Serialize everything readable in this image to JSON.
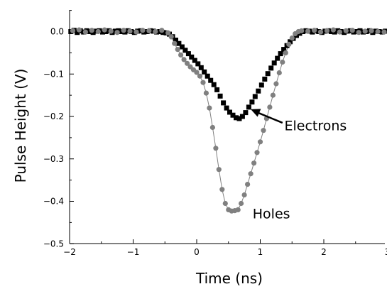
{
  "chart_data": {
    "type": "scatter",
    "xlabel": "Time (ns)",
    "ylabel": "Pulse Height (V)",
    "xlim": [
      -2,
      3
    ],
    "ylim": [
      -0.5,
      0.05
    ],
    "x_ticks": [
      -2,
      -1,
      0,
      1,
      2,
      3
    ],
    "x_tick_labels": [
      "−2",
      "−1",
      "0",
      "1",
      "2",
      "3"
    ],
    "y_ticks": [
      0.0,
      -0.1,
      -0.2,
      -0.3,
      -0.4,
      -0.5
    ],
    "y_tick_labels": [
      "0.0",
      "−0.1",
      "−0.2",
      "−0.3",
      "−0.4",
      "−0.5"
    ],
    "grid": false,
    "legend": "none",
    "series": [
      {
        "name": "Electrons",
        "marker": "square",
        "color": "#000000",
        "line": false,
        "points": [
          [
            -1.98,
            0.0
          ],
          [
            -1.93,
            0.003
          ],
          [
            -1.88,
            -0.002
          ],
          [
            -1.83,
            0.002
          ],
          [
            -1.78,
            -0.001
          ],
          [
            -1.73,
            0.002
          ],
          [
            -1.68,
            0.0
          ],
          [
            -1.63,
            -0.002
          ],
          [
            -1.58,
            0.001
          ],
          [
            -1.53,
            0.002
          ],
          [
            -1.48,
            -0.001
          ],
          [
            -1.43,
            0.0
          ],
          [
            -1.38,
            0.002
          ],
          [
            -1.33,
            -0.002
          ],
          [
            -1.28,
            0.001
          ],
          [
            -1.23,
            0.002
          ],
          [
            -1.18,
            0.0
          ],
          [
            -1.13,
            -0.001
          ],
          [
            -1.08,
            0.002
          ],
          [
            -1.03,
            0.0
          ],
          [
            -0.98,
            -0.002
          ],
          [
            -0.93,
            0.001
          ],
          [
            -0.88,
            0.002
          ],
          [
            -0.83,
            -0.001
          ],
          [
            -0.78,
            0.0
          ],
          [
            -0.73,
            0.002
          ],
          [
            -0.68,
            0.001
          ],
          [
            -0.63,
            -0.001
          ],
          [
            -0.58,
            0.0
          ],
          [
            -0.53,
            -0.002
          ],
          [
            -0.48,
            -0.003
          ],
          [
            -0.43,
            -0.006
          ],
          [
            -0.38,
            -0.012
          ],
          [
            -0.33,
            -0.02
          ],
          [
            -0.28,
            -0.028
          ],
          [
            -0.23,
            -0.036
          ],
          [
            -0.18,
            -0.044
          ],
          [
            -0.13,
            -0.052
          ],
          [
            -0.08,
            -0.06
          ],
          [
            -0.03,
            -0.068
          ],
          [
            0.02,
            -0.076
          ],
          [
            0.07,
            -0.085
          ],
          [
            0.12,
            -0.095
          ],
          [
            0.17,
            -0.105
          ],
          [
            0.22,
            -0.115
          ],
          [
            0.27,
            -0.125
          ],
          [
            0.32,
            -0.137
          ],
          [
            0.37,
            -0.152
          ],
          [
            0.42,
            -0.168
          ],
          [
            0.47,
            -0.18
          ],
          [
            0.52,
            -0.19
          ],
          [
            0.57,
            -0.197
          ],
          [
            0.62,
            -0.203
          ],
          [
            0.67,
            -0.205
          ],
          [
            0.72,
            -0.2
          ],
          [
            0.77,
            -0.191
          ],
          [
            0.82,
            -0.178
          ],
          [
            0.87,
            -0.166
          ],
          [
            0.92,
            -0.153
          ],
          [
            0.97,
            -0.14
          ],
          [
            1.02,
            -0.126
          ],
          [
            1.07,
            -0.112
          ],
          [
            1.12,
            -0.099
          ],
          [
            1.17,
            -0.086
          ],
          [
            1.22,
            -0.074
          ],
          [
            1.27,
            -0.063
          ],
          [
            1.32,
            -0.052
          ],
          [
            1.37,
            -0.042
          ],
          [
            1.42,
            -0.033
          ],
          [
            1.47,
            -0.024
          ],
          [
            1.52,
            -0.016
          ],
          [
            1.57,
            -0.009
          ],
          [
            1.62,
            -0.004
          ],
          [
            1.67,
            0.0
          ],
          [
            1.72,
            0.002
          ],
          [
            1.77,
            0.001
          ],
          [
            1.82,
            -0.001
          ],
          [
            1.87,
            0.002
          ],
          [
            1.92,
            0.0
          ],
          [
            1.97,
            -0.002
          ],
          [
            2.02,
            0.001
          ],
          [
            2.07,
            0.002
          ],
          [
            2.12,
            0.0
          ],
          [
            2.17,
            -0.001
          ],
          [
            2.22,
            0.002
          ],
          [
            2.27,
            0.0
          ],
          [
            2.32,
            -0.002
          ],
          [
            2.37,
            0.001
          ],
          [
            2.42,
            0.002
          ],
          [
            2.47,
            -0.001
          ],
          [
            2.52,
            0.0
          ],
          [
            2.57,
            0.002
          ],
          [
            2.62,
            -0.001
          ],
          [
            2.67,
            0.0
          ],
          [
            2.72,
            0.002
          ],
          [
            2.77,
            -0.002
          ],
          [
            2.82,
            0.001
          ],
          [
            2.87,
            0.0
          ],
          [
            2.92,
            -0.001
          ],
          [
            2.97,
            0.001
          ]
        ]
      },
      {
        "name": "Holes",
        "marker": "circle",
        "color": "#808080",
        "line": true,
        "points": [
          [
            -1.95,
            0.002
          ],
          [
            -1.85,
            0.004
          ],
          [
            -1.75,
            -0.001
          ],
          [
            -1.65,
            0.003
          ],
          [
            -1.55,
            0.0
          ],
          [
            -1.45,
            0.004
          ],
          [
            -1.35,
            0.001
          ],
          [
            -1.25,
            -0.002
          ],
          [
            -1.15,
            0.003
          ],
          [
            -1.05,
            0.001
          ],
          [
            -0.95,
            -0.001
          ],
          [
            -0.85,
            0.003
          ],
          [
            -0.75,
            0.002
          ],
          [
            -0.65,
            0.0
          ],
          [
            -0.55,
            0.003
          ],
          [
            -0.45,
            -0.003
          ],
          [
            -0.4,
            -0.012
          ],
          [
            -0.35,
            -0.028
          ],
          [
            -0.3,
            -0.042
          ],
          [
            -0.25,
            -0.055
          ],
          [
            -0.2,
            -0.066
          ],
          [
            -0.15,
            -0.075
          ],
          [
            -0.1,
            -0.083
          ],
          [
            -0.05,
            -0.09
          ],
          [
            0.0,
            -0.096
          ],
          [
            0.05,
            -0.105
          ],
          [
            0.1,
            -0.12
          ],
          [
            0.15,
            -0.145
          ],
          [
            0.2,
            -0.18
          ],
          [
            0.25,
            -0.226
          ],
          [
            0.3,
            -0.275
          ],
          [
            0.35,
            -0.325
          ],
          [
            0.4,
            -0.372
          ],
          [
            0.45,
            -0.405
          ],
          [
            0.5,
            -0.42
          ],
          [
            0.55,
            -0.423
          ],
          [
            0.6,
            -0.422
          ],
          [
            0.65,
            -0.42
          ],
          [
            0.7,
            -0.405
          ],
          [
            0.75,
            -0.385
          ],
          [
            0.8,
            -0.36
          ],
          [
            0.85,
            -0.335
          ],
          [
            0.9,
            -0.31
          ],
          [
            0.95,
            -0.285
          ],
          [
            1.0,
            -0.26
          ],
          [
            1.05,
            -0.233
          ],
          [
            1.1,
            -0.205
          ],
          [
            1.15,
            -0.178
          ],
          [
            1.2,
            -0.15
          ],
          [
            1.25,
            -0.123
          ],
          [
            1.3,
            -0.097
          ],
          [
            1.35,
            -0.072
          ],
          [
            1.4,
            -0.05
          ],
          [
            1.45,
            -0.03
          ],
          [
            1.5,
            -0.015
          ],
          [
            1.55,
            -0.005
          ],
          [
            1.6,
            0.0
          ],
          [
            1.65,
            0.002
          ],
          [
            1.75,
            0.001
          ],
          [
            1.85,
            0.003
          ],
          [
            1.95,
            -0.001
          ],
          [
            2.05,
            0.002
          ],
          [
            2.15,
            0.004
          ],
          [
            2.25,
            -0.001
          ],
          [
            2.35,
            0.002
          ],
          [
            2.45,
            0.003
          ],
          [
            2.55,
            -0.002
          ],
          [
            2.65,
            0.001
          ],
          [
            2.75,
            0.002
          ],
          [
            2.85,
            0.0
          ],
          [
            2.95,
            -0.001
          ]
        ]
      }
    ],
    "annotations": [
      {
        "text": "Electrons",
        "x": 1.38,
        "y": -0.233,
        "arrow_from": [
          1.35,
          -0.215
        ],
        "arrow_to": [
          0.85,
          -0.183
        ]
      },
      {
        "text": "Holes",
        "x": 0.88,
        "y": -0.44
      }
    ]
  }
}
